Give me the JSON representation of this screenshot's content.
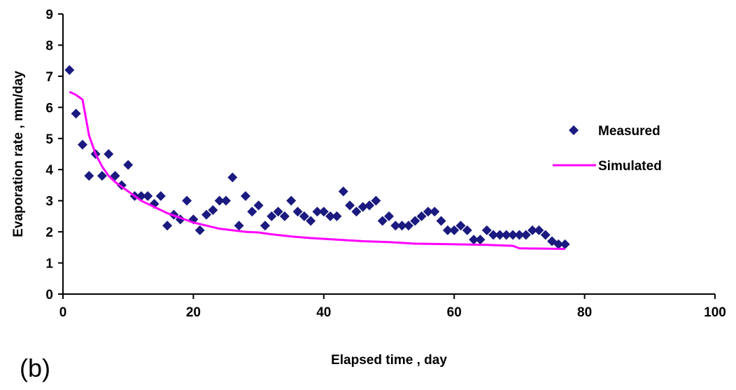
{
  "chart_data": {
    "type": "scatter",
    "x_label": "Elapsed time , day",
    "y_label": "Evaporation rate , mm/day",
    "annotation": "(b)",
    "xlim": [
      0,
      100
    ],
    "xticks": [
      0,
      20,
      40,
      60,
      80,
      100
    ],
    "ylim": [
      0,
      9
    ],
    "yticks": [
      0,
      1,
      2,
      3,
      4,
      5,
      6,
      7,
      8,
      9
    ],
    "grid": false,
    "legend": "right",
    "series": [
      {
        "name": "Measured",
        "color": "#1a1a80",
        "kind": "scatter",
        "x": [
          1,
          2,
          3,
          4,
          5,
          6,
          7,
          8,
          9,
          10,
          11,
          12,
          13,
          14,
          15,
          16,
          17,
          18,
          19,
          20,
          21,
          22,
          23,
          24,
          25,
          26,
          27,
          28,
          29,
          30,
          31,
          32,
          33,
          34,
          35,
          36,
          37,
          38,
          39,
          40,
          41,
          42,
          43,
          44,
          45,
          46,
          47,
          48,
          49,
          50,
          51,
          52,
          53,
          54,
          55,
          56,
          57,
          58,
          59,
          60,
          61,
          62,
          63,
          64,
          65,
          66,
          67,
          68,
          69,
          70,
          71,
          72,
          73,
          74,
          75,
          76,
          77
        ],
        "values": [
          7.2,
          5.8,
          4.8,
          3.8,
          4.5,
          3.8,
          4.5,
          3.8,
          3.5,
          4.15,
          3.15,
          3.15,
          3.15,
          2.9,
          3.15,
          2.2,
          2.55,
          2.4,
          3.0,
          2.4,
          2.05,
          2.55,
          2.7,
          3.0,
          3.0,
          3.75,
          2.2,
          3.15,
          2.65,
          2.85,
          2.2,
          2.5,
          2.65,
          2.5,
          3.0,
          2.65,
          2.5,
          2.35,
          2.65,
          2.65,
          2.5,
          2.5,
          3.3,
          2.85,
          2.65,
          2.8,
          2.85,
          3.0,
          2.35,
          2.5,
          2.2,
          2.2,
          2.2,
          2.35,
          2.5,
          2.65,
          2.65,
          2.35,
          2.05,
          2.05,
          2.2,
          2.05,
          1.75,
          1.75,
          2.05,
          1.9,
          1.9,
          1.9,
          1.9,
          1.9,
          1.9,
          2.05,
          2.05,
          1.9,
          1.7,
          1.6,
          1.6
        ]
      },
      {
        "name": "Simulated",
        "color": "#ff00ff",
        "kind": "line",
        "x": [
          1,
          2,
          3,
          4,
          5,
          6,
          7,
          8,
          9,
          10,
          12,
          14,
          16,
          18,
          20,
          22,
          24,
          26,
          28,
          30,
          32,
          35,
          38,
          42,
          46,
          50,
          54,
          60,
          65,
          69,
          70,
          77
        ],
        "values": [
          6.5,
          6.4,
          6.25,
          5.1,
          4.5,
          4.1,
          3.8,
          3.6,
          3.45,
          3.3,
          3.0,
          2.8,
          2.6,
          2.45,
          2.3,
          2.2,
          2.1,
          2.05,
          2.0,
          1.98,
          1.92,
          1.85,
          1.8,
          1.75,
          1.7,
          1.67,
          1.62,
          1.6,
          1.58,
          1.55,
          1.47,
          1.45
        ]
      }
    ]
  }
}
